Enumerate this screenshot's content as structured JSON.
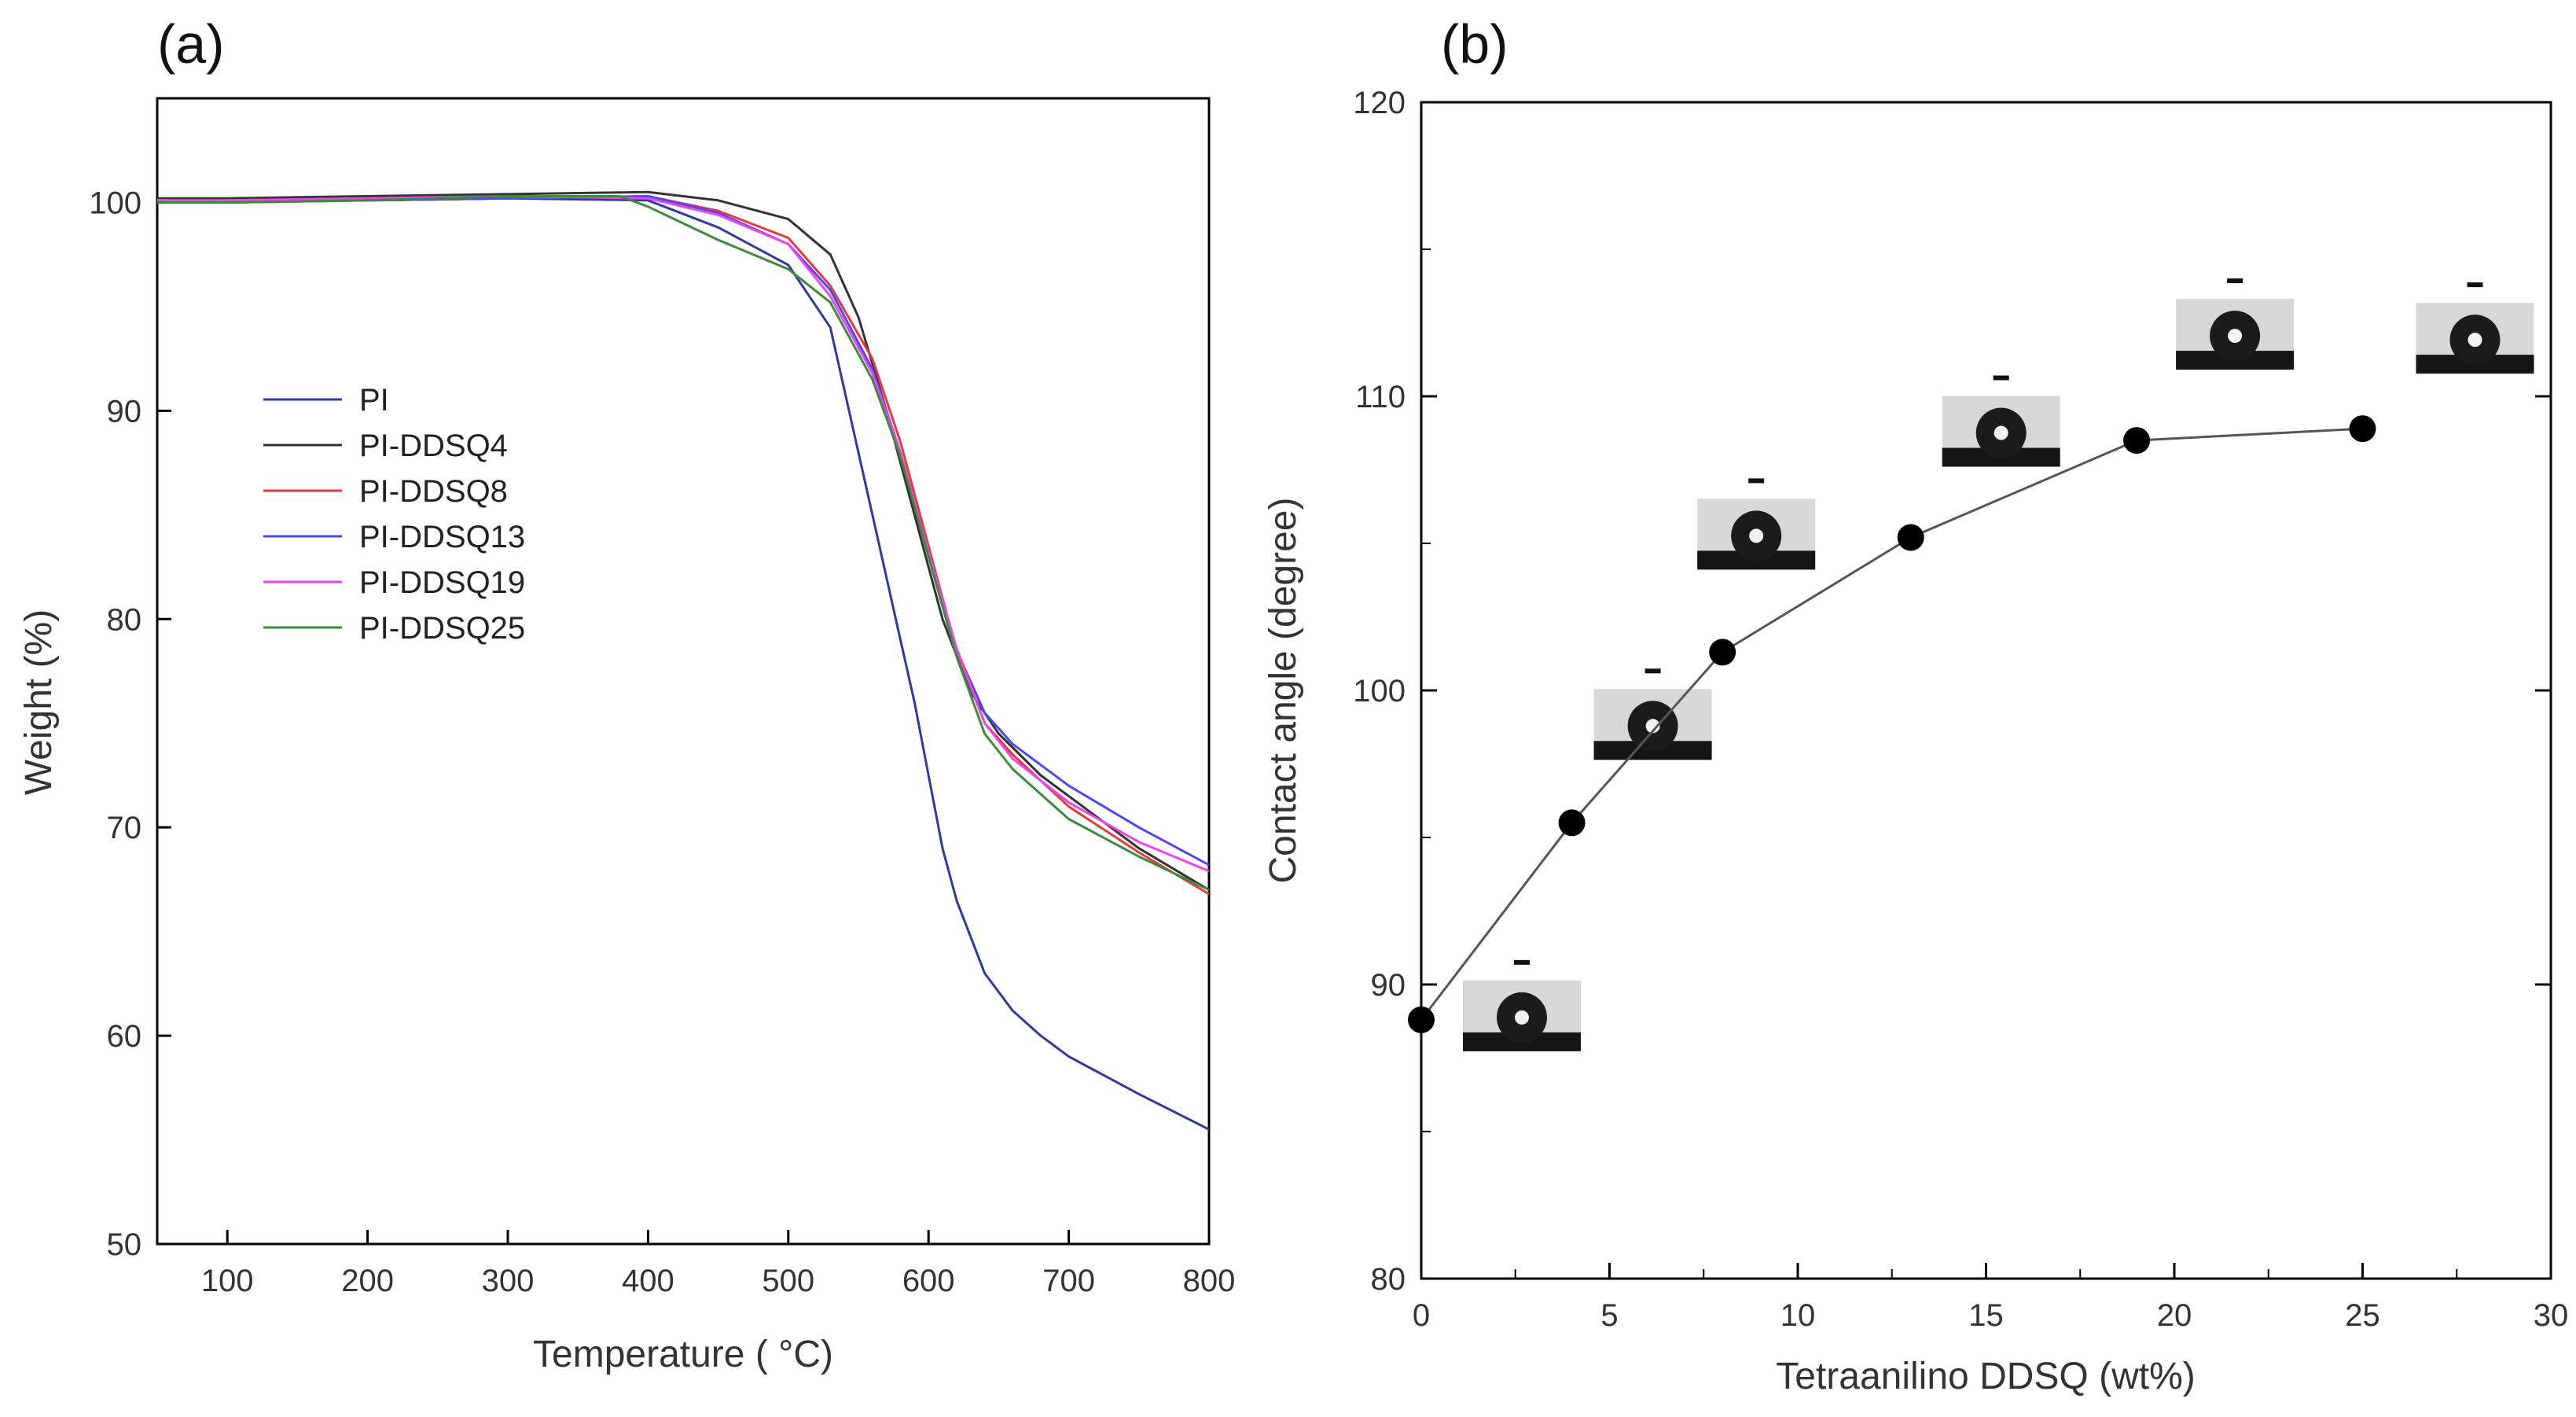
{
  "panels": {
    "a": {
      "label": "(a)"
    },
    "b": {
      "label": "(b)"
    }
  },
  "chart_data": [
    {
      "type": "line",
      "title": "",
      "xlabel": "Temperature ( °C)",
      "ylabel": "Weight (%)",
      "xlim": [
        50,
        800
      ],
      "ylim": [
        50,
        105
      ],
      "xticks": [
        100,
        200,
        300,
        400,
        500,
        600,
        700,
        800
      ],
      "yticks": [
        50,
        60,
        70,
        80,
        90,
        100
      ],
      "legend_position": "center-left",
      "series": [
        {
          "name": "PI",
          "color": "#2f3a9e",
          "x": [
            50,
            100,
            200,
            300,
            400,
            450,
            500,
            530,
            550,
            570,
            580,
            590,
            600,
            610,
            620,
            640,
            660,
            680,
            700,
            750,
            800
          ],
          "y": [
            100.0,
            100.0,
            100.1,
            100.2,
            100.1,
            98.8,
            97.0,
            94.0,
            88.0,
            82.0,
            79.0,
            76.0,
            72.5,
            69.0,
            66.5,
            63.0,
            61.2,
            60.0,
            59.0,
            57.2,
            55.5
          ]
        },
        {
          "name": "PI-DDSQ4",
          "color": "#333333",
          "x": [
            50,
            100,
            200,
            300,
            400,
            450,
            500,
            530,
            550,
            570,
            590,
            610,
            630,
            650,
            680,
            700,
            750,
            800
          ],
          "y": [
            100.2,
            100.2,
            100.3,
            100.4,
            100.5,
            100.1,
            99.2,
            97.5,
            94.5,
            90.0,
            85.0,
            80.0,
            76.5,
            74.5,
            72.5,
            71.5,
            69.0,
            67.0
          ]
        },
        {
          "name": "PI-DDSQ8",
          "color": "#e8383d",
          "x": [
            50,
            100,
            200,
            300,
            400,
            450,
            500,
            530,
            560,
            580,
            600,
            620,
            640,
            660,
            700,
            750,
            800
          ],
          "y": [
            100.1,
            100.0,
            100.1,
            100.2,
            100.3,
            99.6,
            98.3,
            96.0,
            92.5,
            88.5,
            83.5,
            78.5,
            75.0,
            73.5,
            71.0,
            68.8,
            66.8
          ]
        },
        {
          "name": "PI-DDSQ13",
          "color": "#4a4af0",
          "x": [
            50,
            100,
            200,
            300,
            400,
            450,
            500,
            530,
            560,
            580,
            600,
            620,
            640,
            660,
            700,
            750,
            800
          ],
          "y": [
            100.1,
            100.1,
            100.1,
            100.2,
            100.3,
            99.5,
            98.0,
            95.8,
            92.0,
            88.0,
            83.0,
            78.5,
            75.5,
            74.0,
            72.0,
            70.0,
            68.2
          ]
        },
        {
          "name": "PI-DDSQ19",
          "color": "#ee44ee",
          "x": [
            50,
            100,
            200,
            300,
            400,
            450,
            500,
            530,
            560,
            580,
            600,
            620,
            640,
            660,
            700,
            750,
            800
          ],
          "y": [
            100.1,
            100.1,
            100.2,
            100.3,
            100.2,
            99.4,
            98.0,
            95.5,
            91.8,
            88.0,
            83.2,
            78.6,
            75.0,
            73.3,
            71.2,
            69.3,
            67.9
          ]
        },
        {
          "name": "PI-DDSQ25",
          "color": "#3a8c3a",
          "x": [
            50,
            100,
            200,
            300,
            380,
            400,
            450,
            500,
            530,
            560,
            580,
            600,
            620,
            640,
            660,
            700,
            750,
            800
          ],
          "y": [
            100.0,
            100.0,
            100.1,
            100.3,
            100.3,
            99.8,
            98.2,
            96.8,
            95.2,
            91.5,
            87.8,
            83.0,
            78.2,
            74.5,
            72.8,
            70.4,
            68.6,
            67.0
          ]
        }
      ]
    },
    {
      "type": "scatter",
      "title": "",
      "xlabel": "Tetraanilino DDSQ (wt%)",
      "ylabel": "Contact angle (degree)",
      "xlim": [
        0,
        30
      ],
      "ylim": [
        80,
        120
      ],
      "xticks": [
        0,
        5,
        10,
        15,
        20,
        25,
        30
      ],
      "yticks": [
        80,
        90,
        100,
        110,
        120
      ],
      "connected": true,
      "marker_color": "#000000",
      "line_color": "#555555",
      "x": [
        0,
        4,
        8,
        13,
        19,
        25
      ],
      "y": [
        88.8,
        95.5,
        101.3,
        105.2,
        108.5,
        108.9
      ],
      "droplet_image_count": 6
    }
  ]
}
